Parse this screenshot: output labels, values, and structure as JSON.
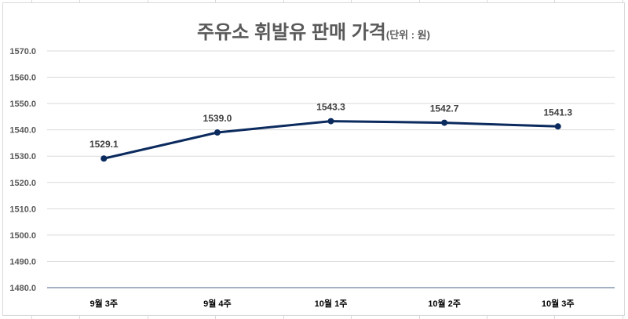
{
  "chart_data": {
    "type": "line",
    "title": "주유소 휘발유 판매 가격",
    "title_unit": "(단위 : 원)",
    "xlabel": "",
    "ylabel": "",
    "categories": [
      "9월 3주",
      "9월 4주",
      "10월 1주",
      "10월 2주",
      "10월 3주"
    ],
    "series": [
      {
        "name": "휘발유 판매 가격",
        "values": [
          1529.1,
          1539.0,
          1543.3,
          1542.7,
          1541.3
        ],
        "color": "#0b2a5e"
      }
    ],
    "data_labels": [
      "1529.1",
      "1539.0",
      "1543.3",
      "1542.7",
      "1541.3"
    ],
    "ylim": [
      1480.0,
      1570.0
    ],
    "yticks": [
      "1570.0",
      "1560.0",
      "1550.0",
      "1540.0",
      "1530.0",
      "1520.0",
      "1510.0",
      "1500.0",
      "1490.0",
      "1480.0"
    ],
    "grid": true,
    "legend": "none",
    "colors": {
      "line": "#0b2a5e",
      "grid": "#d9d9d9",
      "axis": "#8497b0",
      "title": "#595959"
    }
  }
}
